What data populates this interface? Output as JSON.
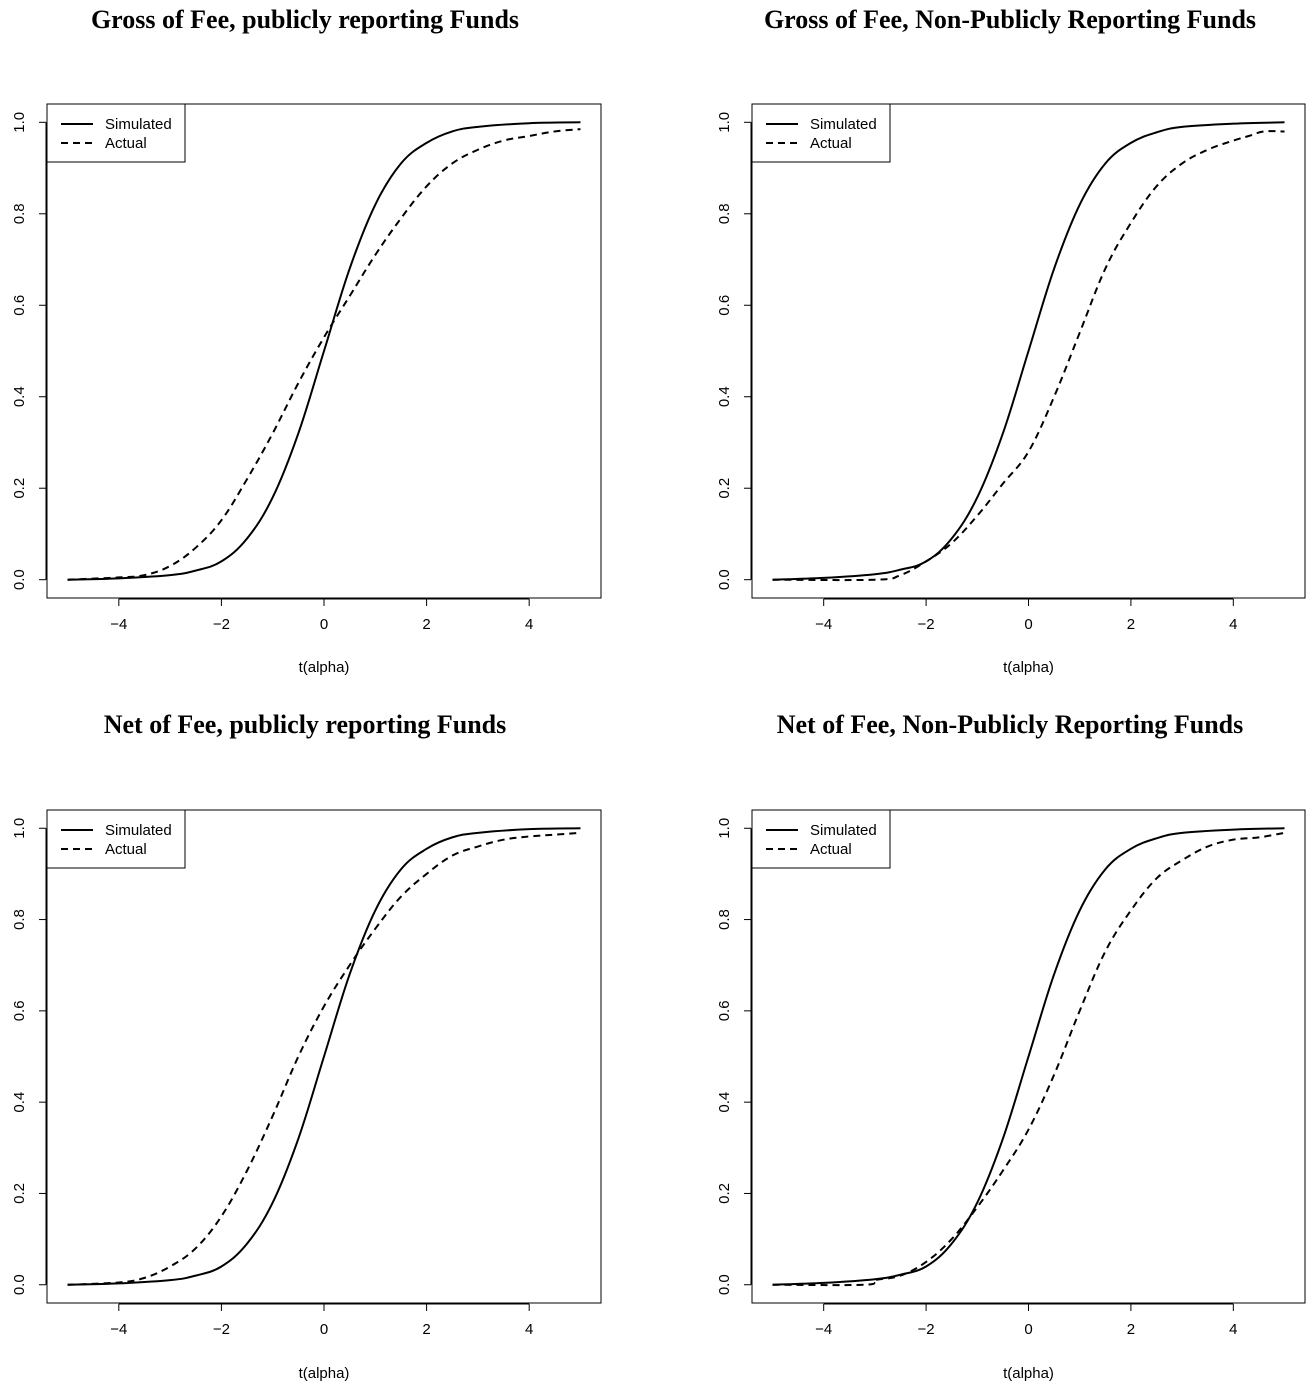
{
  "figure": {
    "panels": 4
  },
  "chart_data": [
    {
      "type": "line",
      "title": "Gross of Fee, publicly reporting Funds",
      "xlabel": "t(alpha)",
      "ylabel": "",
      "xlim": [
        -5,
        5
      ],
      "ylim": [
        0,
        1
      ],
      "xticks": [
        "−4",
        "−2",
        "0",
        "2",
        "4"
      ],
      "yticks": [
        "0.0",
        "0.2",
        "0.4",
        "0.6",
        "0.8",
        "1.0"
      ],
      "legend": {
        "position": "top-left",
        "entries": [
          "Simulated",
          "Actual"
        ]
      },
      "grid": false,
      "series": [
        {
          "name": "Simulated",
          "style": "solid",
          "x": [
            -5,
            -4,
            -3,
            -2.5,
            -2,
            -1.5,
            -1,
            -0.5,
            0,
            0.5,
            1,
            1.5,
            2,
            2.5,
            3,
            4,
            5
          ],
          "y": [
            0.0,
            0.003,
            0.01,
            0.02,
            0.04,
            0.09,
            0.18,
            0.32,
            0.5,
            0.68,
            0.82,
            0.91,
            0.955,
            0.98,
            0.99,
            0.998,
            1.0
          ]
        },
        {
          "name": "Actual",
          "style": "dashed",
          "x": [
            -5,
            -4,
            -3.5,
            -3,
            -2.5,
            -2,
            -1.5,
            -1,
            -0.5,
            0,
            0.5,
            1,
            1.5,
            2,
            2.5,
            3,
            3.5,
            4,
            4.5,
            5
          ],
          "y": [
            0.0,
            0.005,
            0.01,
            0.03,
            0.07,
            0.13,
            0.22,
            0.32,
            0.43,
            0.53,
            0.62,
            0.71,
            0.79,
            0.86,
            0.91,
            0.94,
            0.96,
            0.97,
            0.98,
            0.985
          ]
        }
      ]
    },
    {
      "type": "line",
      "title": "Gross of Fee, Non-Publicly Reporting Funds",
      "xlabel": "t(alpha)",
      "ylabel": "",
      "xlim": [
        -5,
        5
      ],
      "ylim": [
        0,
        1
      ],
      "xticks": [
        "−4",
        "−2",
        "0",
        "2",
        "4"
      ],
      "yticks": [
        "0.0",
        "0.2",
        "0.4",
        "0.6",
        "0.8",
        "1.0"
      ],
      "legend": {
        "position": "top-left",
        "entries": [
          "Simulated",
          "Actual"
        ]
      },
      "grid": false,
      "series": [
        {
          "name": "Simulated",
          "style": "solid",
          "x": [
            -5,
            -4,
            -3,
            -2.5,
            -2,
            -1.5,
            -1,
            -0.5,
            0,
            0.5,
            1,
            1.5,
            2,
            2.5,
            3,
            4,
            5
          ],
          "y": [
            0.0,
            0.004,
            0.012,
            0.022,
            0.04,
            0.09,
            0.18,
            0.32,
            0.5,
            0.68,
            0.82,
            0.91,
            0.955,
            0.978,
            0.99,
            0.997,
            1.0
          ]
        },
        {
          "name": "Actual",
          "style": "dashed",
          "x": [
            -5,
            -3,
            -2.5,
            -2,
            -1.5,
            -1,
            -0.5,
            0,
            0.5,
            1,
            1.5,
            2,
            2.5,
            3,
            3.5,
            4,
            4.3,
            4.6,
            5
          ],
          "y": [
            0.0,
            0.0,
            0.01,
            0.04,
            0.08,
            0.14,
            0.21,
            0.28,
            0.4,
            0.54,
            0.68,
            0.78,
            0.86,
            0.91,
            0.94,
            0.96,
            0.97,
            0.98,
            0.98
          ]
        }
      ]
    },
    {
      "type": "line",
      "title": "Net of Fee, publicly reporting Funds",
      "xlabel": "t(alpha)",
      "ylabel": "",
      "xlim": [
        -5,
        5
      ],
      "ylim": [
        0,
        1
      ],
      "xticks": [
        "−4",
        "−2",
        "0",
        "2",
        "4"
      ],
      "yticks": [
        "0.0",
        "0.2",
        "0.4",
        "0.6",
        "0.8",
        "1.0"
      ],
      "legend": {
        "position": "top-left",
        "entries": [
          "Simulated",
          "Actual"
        ]
      },
      "grid": false,
      "series": [
        {
          "name": "Simulated",
          "style": "solid",
          "x": [
            -5,
            -4,
            -3,
            -2.5,
            -2,
            -1.5,
            -1,
            -0.5,
            0,
            0.5,
            1,
            1.5,
            2,
            2.5,
            3,
            4,
            5
          ],
          "y": [
            0.0,
            0.003,
            0.01,
            0.02,
            0.04,
            0.09,
            0.18,
            0.32,
            0.5,
            0.68,
            0.82,
            0.91,
            0.955,
            0.98,
            0.99,
            0.998,
            1.0
          ]
        },
        {
          "name": "Actual",
          "style": "dashed",
          "x": [
            -5,
            -4,
            -3.5,
            -3,
            -2.5,
            -2,
            -1.5,
            -1,
            -0.5,
            0,
            0.5,
            1,
            1.5,
            2,
            2.5,
            3,
            3.5,
            4,
            4.5,
            5
          ],
          "y": [
            0.0,
            0.005,
            0.015,
            0.04,
            0.08,
            0.15,
            0.25,
            0.37,
            0.5,
            0.61,
            0.7,
            0.78,
            0.85,
            0.9,
            0.94,
            0.96,
            0.975,
            0.982,
            0.986,
            0.99
          ]
        }
      ]
    },
    {
      "type": "line",
      "title": "Net of Fee, Non-Publicly Reporting Funds",
      "xlabel": "t(alpha)",
      "ylabel": "",
      "xlim": [
        -5,
        5
      ],
      "ylim": [
        0,
        1
      ],
      "xticks": [
        "−4",
        "−2",
        "0",
        "2",
        "4"
      ],
      "yticks": [
        "0.0",
        "0.2",
        "0.4",
        "0.6",
        "0.8",
        "1.0"
      ],
      "legend": {
        "position": "top-left",
        "entries": [
          "Simulated",
          "Actual"
        ]
      },
      "grid": false,
      "series": [
        {
          "name": "Simulated",
          "style": "solid",
          "x": [
            -5,
            -4,
            -3,
            -2.5,
            -2,
            -1.5,
            -1,
            -0.5,
            0,
            0.5,
            1,
            1.5,
            2,
            2.5,
            3,
            4,
            5
          ],
          "y": [
            0.0,
            0.004,
            0.012,
            0.022,
            0.04,
            0.09,
            0.18,
            0.32,
            0.5,
            0.68,
            0.82,
            0.91,
            0.955,
            0.978,
            0.99,
            0.997,
            1.0
          ]
        },
        {
          "name": "Actual",
          "style": "dashed",
          "x": [
            -5,
            -3.2,
            -3,
            -2.5,
            -2,
            -1.5,
            -1,
            -0.5,
            0,
            0.5,
            1,
            1.5,
            2,
            2.5,
            3,
            3.5,
            4,
            4.5,
            5
          ],
          "y": [
            0.0,
            0.0,
            0.01,
            0.02,
            0.05,
            0.1,
            0.17,
            0.25,
            0.34,
            0.46,
            0.6,
            0.73,
            0.82,
            0.89,
            0.93,
            0.96,
            0.975,
            0.98,
            0.99
          ]
        }
      ]
    }
  ]
}
